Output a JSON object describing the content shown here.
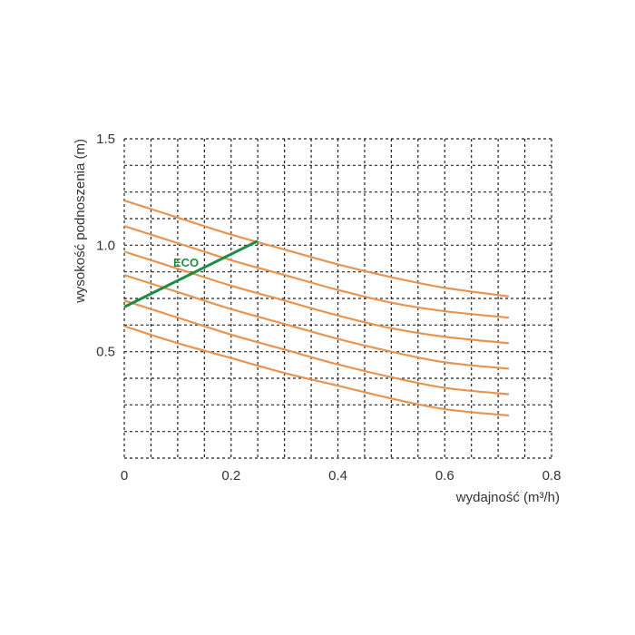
{
  "chart_data": {
    "type": "line",
    "xlabel": "wydajność (m³/h)",
    "ylabel": "wysokość podnoszenia (m)",
    "xlim": [
      0,
      0.8
    ],
    "ylim": [
      0,
      1.5
    ],
    "x_ticks": [
      "0",
      "0.2",
      "0.4",
      "0.6",
      "0.8"
    ],
    "y_ticks": [
      "0.5",
      "1.0",
      "1.5"
    ],
    "grid": true,
    "curve_color": "#E8944E",
    "series": [
      {
        "x": [
          0,
          0.1,
          0.2,
          0.3,
          0.4,
          0.5,
          0.6,
          0.72
        ],
        "y": [
          1.21,
          1.13,
          1.05,
          0.98,
          0.91,
          0.85,
          0.8,
          0.76
        ]
      },
      {
        "x": [
          0,
          0.1,
          0.2,
          0.3,
          0.4,
          0.5,
          0.6,
          0.72
        ],
        "y": [
          1.09,
          1.01,
          0.93,
          0.86,
          0.79,
          0.73,
          0.69,
          0.66
        ]
      },
      {
        "x": [
          0,
          0.1,
          0.2,
          0.3,
          0.4,
          0.5,
          0.6,
          0.72
        ],
        "y": [
          0.97,
          0.89,
          0.81,
          0.74,
          0.67,
          0.61,
          0.57,
          0.54
        ]
      },
      {
        "x": [
          0,
          0.1,
          0.2,
          0.3,
          0.4,
          0.5,
          0.6,
          0.72
        ],
        "y": [
          0.86,
          0.78,
          0.7,
          0.63,
          0.56,
          0.5,
          0.45,
          0.42
        ]
      },
      {
        "x": [
          0,
          0.1,
          0.2,
          0.3,
          0.4,
          0.5,
          0.6,
          0.72
        ],
        "y": [
          0.74,
          0.66,
          0.58,
          0.51,
          0.44,
          0.38,
          0.33,
          0.3
        ]
      },
      {
        "x": [
          0,
          0.1,
          0.2,
          0.3,
          0.4,
          0.5,
          0.6,
          0.72
        ],
        "y": [
          0.62,
          0.54,
          0.47,
          0.4,
          0.34,
          0.28,
          0.23,
          0.2
        ]
      }
    ],
    "eco": {
      "label": "ECO",
      "color": "#1E8C45",
      "x": [
        0,
        0.25
      ],
      "y": [
        0.71,
        1.02
      ]
    }
  }
}
